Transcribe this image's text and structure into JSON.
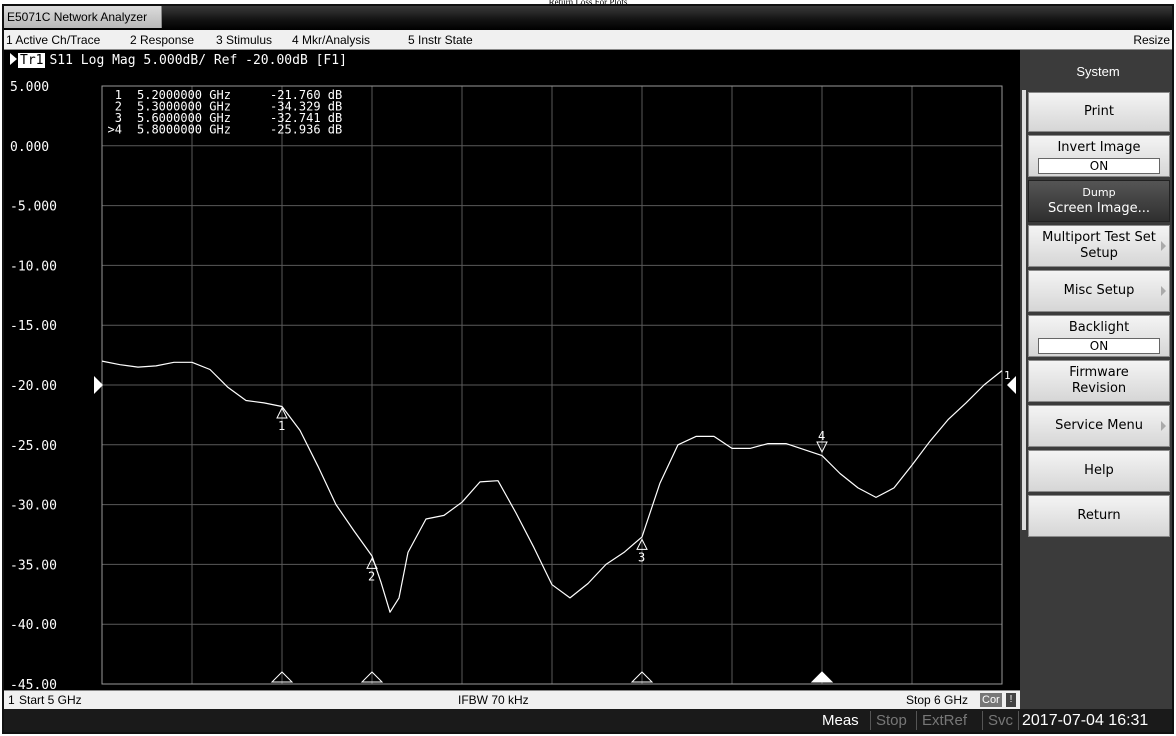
{
  "top_caption": "Return Loss For Plots",
  "window_title": "E5071C Network Analyzer",
  "menu": [
    "1 Active Ch/Trace",
    "2 Response",
    "3 Stimulus",
    "4 Mkr/Analysis",
    "5 Instr State"
  ],
  "resize_label": "Resize",
  "trace": {
    "label": "Tr1",
    "text": "S11 Log Mag 5.000dB/ Ref -20.00dB [F1]"
  },
  "marker_table": [
    {
      "id": "1",
      "freq": "5.2000000 GHz",
      "value": "-21.760 dB"
    },
    {
      "id": "2",
      "freq": "5.3000000 GHz",
      "value": "-34.329 dB"
    },
    {
      "id": "3",
      "freq": "5.6000000 GHz",
      "value": "-32.741 dB"
    },
    {
      "id": ">4",
      "freq": "5.8000000 GHz",
      "value": "-25.936 dB"
    }
  ],
  "softkeys": {
    "title": "System",
    "print": "Print",
    "invert_image": "Invert Image",
    "invert_image_state": "ON",
    "dump_line1": "Dump",
    "dump_line2": "Screen Image...",
    "multiport_line1": "Multiport Test Set",
    "multiport_line2": "Setup",
    "misc_setup": "Misc Setup",
    "backlight": "Backlight",
    "backlight_state": "ON",
    "firmware_line1": "Firmware",
    "firmware_line2": "Revision",
    "service_menu": "Service Menu",
    "help": "Help",
    "return": "Return"
  },
  "status": {
    "channel": "1",
    "start": "Start 5 GHz",
    "ifbw": "IFBW 70 kHz",
    "stop": "Stop 6 GHz",
    "cor": "Cor",
    "warn": "!"
  },
  "bottom": {
    "meas": "Meas",
    "stop": "Stop",
    "extref": "ExtRef",
    "svc": "Svc",
    "datetime": "2017-07-04 16:31"
  },
  "chart_data": {
    "type": "line",
    "xlabel": "",
    "ylabel": "",
    "xlim": [
      5.0,
      6.0
    ],
    "ylim": [
      -45.0,
      5.0
    ],
    "y_ticks": [
      5,
      0,
      -5,
      -10,
      -15,
      -20,
      -25,
      -30,
      -35,
      -40,
      -45
    ],
    "y_tick_labels": [
      "5.000",
      "0.000",
      "-5.000",
      "-10.00",
      "-15.00",
      "-20.00",
      "-25.00",
      "-30.00",
      "-35.00",
      "-40.00",
      "-45.00"
    ],
    "reference_level": -20.0,
    "grid": true,
    "colors": {
      "background": "#000000",
      "trace": "#ffffff",
      "grid": "#5a5a5a"
    },
    "series": [
      {
        "x": [
          5.0,
          5.02,
          5.04,
          5.06,
          5.08,
          5.1,
          5.12,
          5.14,
          5.16,
          5.18,
          5.2,
          5.22,
          5.24,
          5.26,
          5.28,
          5.3,
          5.31,
          5.32,
          5.33,
          5.34,
          5.36,
          5.38,
          5.4,
          5.42,
          5.44,
          5.46,
          5.48,
          5.5,
          5.52,
          5.54,
          5.56,
          5.58,
          5.6,
          5.62,
          5.64,
          5.66,
          5.68,
          5.7,
          5.72,
          5.74,
          5.76,
          5.78,
          5.8,
          5.82,
          5.84,
          5.86,
          5.88,
          5.9,
          5.92,
          5.94,
          5.96,
          5.98,
          6.0
        ],
        "y": [
          -18.0,
          -18.3,
          -18.5,
          -18.4,
          -18.1,
          -18.1,
          -18.7,
          -20.2,
          -21.3,
          -21.5,
          -21.8,
          -23.8,
          -26.8,
          -30.0,
          -32.2,
          -34.3,
          -36.5,
          -39.0,
          -37.8,
          -34.0,
          -31.2,
          -30.9,
          -29.8,
          -28.1,
          -28.0,
          -30.7,
          -33.6,
          -36.7,
          -37.8,
          -36.6,
          -35.0,
          -34.0,
          -32.7,
          -28.2,
          -25.0,
          -24.3,
          -24.3,
          -25.3,
          -25.3,
          -24.9,
          -24.9,
          -25.4,
          -25.9,
          -27.4,
          -28.6,
          -29.4,
          -28.6,
          -26.7,
          -24.7,
          -22.9,
          -21.5,
          -20.0,
          -18.8
        ]
      }
    ],
    "markers": [
      {
        "id": "1",
        "x": 5.2,
        "y": -21.76
      },
      {
        "id": "2",
        "x": 5.3,
        "y": -34.329
      },
      {
        "id": "3",
        "x": 5.6,
        "y": -32.741
      },
      {
        "id": "4",
        "x": 5.8,
        "y": -25.936,
        "active": true
      }
    ],
    "ref_marker_label": "1"
  }
}
